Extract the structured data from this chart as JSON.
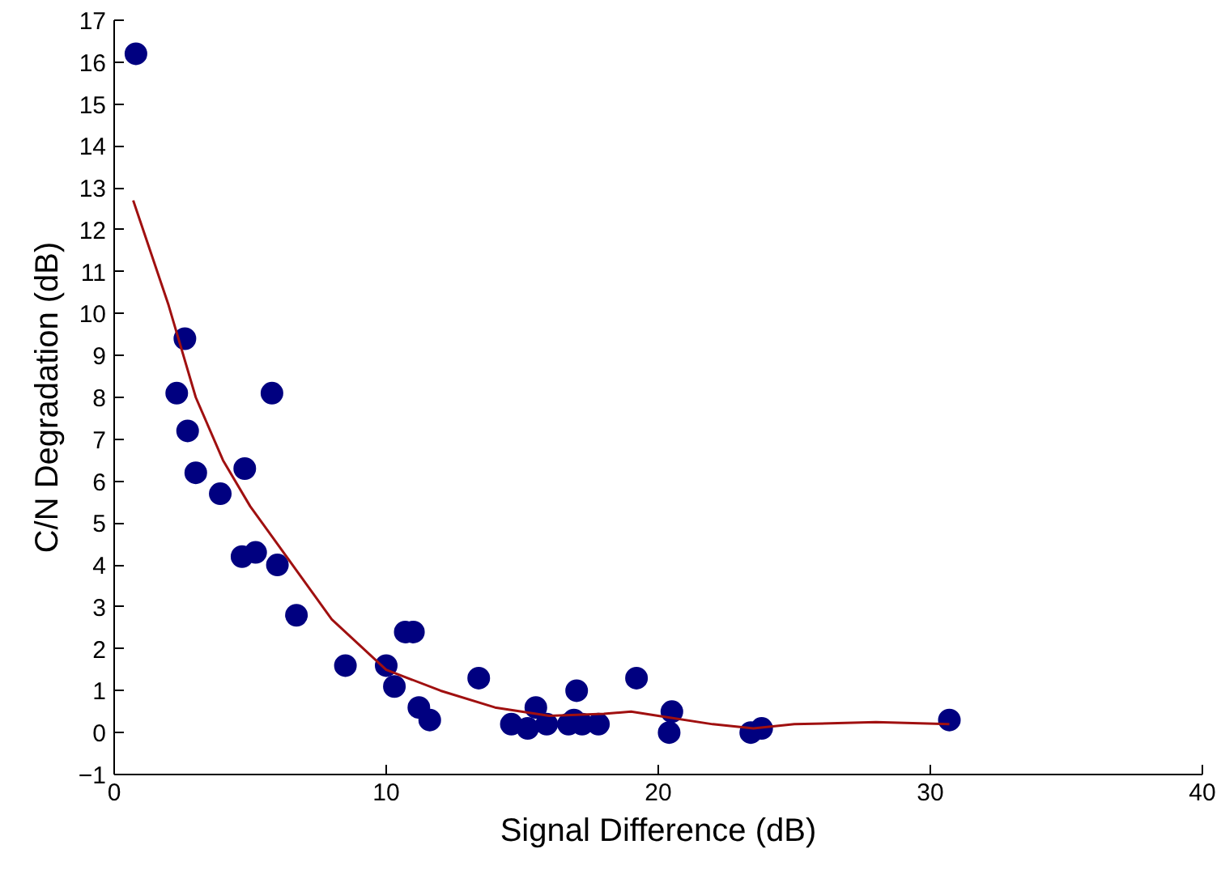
{
  "chart_data": {
    "type": "scatter",
    "xlabel": "Signal Difference (dB)",
    "ylabel": "C/N Degradation (dB)",
    "xlim": [
      0,
      40
    ],
    "ylim": [
      -1,
      17
    ],
    "xticks": [
      0,
      10,
      20,
      30,
      40
    ],
    "yticks": [
      -1,
      0,
      1,
      2,
      3,
      4,
      5,
      6,
      7,
      8,
      9,
      10,
      11,
      12,
      13,
      14,
      15,
      16,
      17
    ],
    "grid": false,
    "marker": "circle",
    "series": [
      {
        "color": "#000080",
        "x": [
          0.8,
          2.6,
          2.3,
          2.7,
          3.0,
          3.9,
          4.8,
          4.7,
          5.2,
          5.8,
          6.0,
          6.7,
          8.5,
          10.0,
          10.3,
          10.7,
          11.0,
          11.2,
          11.6,
          13.4,
          14.6,
          15.2,
          15.5,
          15.9,
          16.7,
          16.9,
          17.0,
          17.2,
          17.8,
          19.2,
          20.4,
          20.5,
          23.4,
          23.8,
          30.7
        ],
        "values": [
          16.2,
          9.4,
          8.1,
          7.2,
          6.2,
          5.7,
          6.3,
          4.2,
          4.3,
          8.1,
          4.0,
          2.8,
          1.6,
          1.6,
          1.1,
          2.4,
          2.4,
          0.6,
          0.3,
          1.3,
          0.2,
          0.1,
          0.6,
          0.2,
          0.2,
          0.3,
          1.0,
          0.2,
          0.2,
          1.3,
          0.0,
          0.5,
          0.0,
          0.1,
          0.3
        ]
      },
      {
        "type": "line",
        "color": "#a01010",
        "marker": "none",
        "x": [
          0.7,
          2,
          3,
          4,
          5,
          6,
          8,
          10,
          12,
          14,
          16,
          18,
          19,
          20,
          22,
          23.5,
          25,
          28,
          30.7
        ],
        "values": [
          12.7,
          10.2,
          8.0,
          6.5,
          5.4,
          4.5,
          2.7,
          1.5,
          1.0,
          0.6,
          0.4,
          0.45,
          0.5,
          0.4,
          0.2,
          0.1,
          0.2,
          0.25,
          0.2
        ]
      }
    ]
  }
}
